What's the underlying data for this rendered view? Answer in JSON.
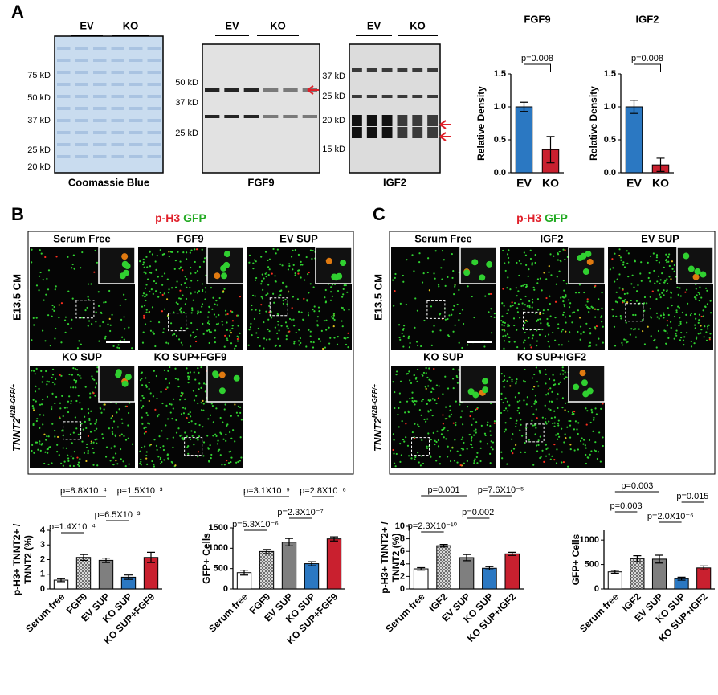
{
  "panel_labels": [
    "A",
    "B",
    "C"
  ],
  "blots": [
    {
      "caption": "Coomassie Blue",
      "groups": [
        "EV",
        "KO"
      ],
      "markers": [
        "75 kD",
        "50 kD",
        "37 kD",
        "25 kD",
        "20 kD"
      ]
    },
    {
      "caption": "FGF9",
      "groups": [
        "EV",
        "KO"
      ],
      "markers": [
        "50 kD",
        "37 kD",
        "25 kD"
      ]
    },
    {
      "caption": "IGF2",
      "groups": [
        "EV",
        "KO"
      ],
      "markers": [
        "37 kD",
        "25 kD",
        "20 kD",
        "15 kD"
      ]
    }
  ],
  "imaging": [
    {
      "stain": [
        "p-H3",
        "GFP"
      ],
      "condition": "E13.5 CM",
      "genotype": {
        "gene": "TNNT2",
        "allele": "H2B-GFP/+"
      },
      "fields": [
        "Serum Free",
        "FGF9",
        "EV SUP",
        "KO SUP",
        "KO SUP+FGF9"
      ]
    },
    {
      "stain": [
        "p-H3",
        "GFP"
      ],
      "condition": "E13.5 CM",
      "genotype": {
        "gene": "TNNT2",
        "allele": "H2B-GFP/+"
      },
      "fields": [
        "Serum Free",
        "IGF2",
        "EV SUP",
        "KO SUP",
        "KO SUP+IGF2"
      ]
    }
  ],
  "chart_data": [
    {
      "type": "bar",
      "title": "FGF9",
      "y_label": [
        "Relative Density"
      ],
      "categories": [
        "EV",
        "KO"
      ],
      "values": [
        1.0,
        0.35
      ],
      "errors": [
        0.07,
        0.2
      ],
      "colors": [
        "#2b78c2",
        "#c9202f"
      ],
      "hatched": [
        false,
        false
      ],
      "ylim": [
        0,
        1.5
      ],
      "yticks": [
        {
          "value": 0,
          "label": "0.0"
        },
        0.5,
        {
          "value": 1,
          "label": "1.0"
        },
        1.5
      ],
      "comparisons": [
        {
          "label": "p=0.008",
          "pair": [
            0,
            1
          ]
        }
      ]
    },
    {
      "type": "bar",
      "title": "IGF2",
      "y_label": [
        "Relative Density"
      ],
      "categories": [
        "EV",
        "KO"
      ],
      "values": [
        1.0,
        0.12
      ],
      "errors": [
        0.1,
        0.1
      ],
      "colors": [
        "#2b78c2",
        "#c9202f"
      ],
      "hatched": [
        false,
        false
      ],
      "ylim": [
        0,
        1.5
      ],
      "yticks": [
        {
          "value": 0,
          "label": "0.0"
        },
        0.5,
        {
          "value": 1,
          "label": "1.0"
        },
        1.5
      ],
      "comparisons": [
        {
          "label": "p=0.008",
          "pair": [
            0,
            1
          ]
        }
      ]
    },
    {
      "type": "bar",
      "y_label": [
        "p-H3+ TNNT2+ /",
        "TNNT2 (%)"
      ],
      "categories": [
        "Serum free",
        "FGF9",
        "EV SUP",
        "KO SUP",
        "KO SUP+FGF9"
      ],
      "values": [
        0.6,
        2.15,
        1.95,
        0.8,
        2.15
      ],
      "errors": [
        0.1,
        0.2,
        0.15,
        0.15,
        0.35
      ],
      "colors": [
        "#ffffff",
        "#a0a0a0",
        "#7f7f7f",
        "#2b78c2",
        "#c9202f"
      ],
      "hatched": [
        false,
        true,
        false,
        false,
        false
      ],
      "ylim": [
        0,
        4
      ],
      "yticks": [
        0,
        1,
        2,
        3,
        4
      ],
      "comparisons": [
        {
          "label": "p=1.4X10⁻⁴",
          "pair": [
            0,
            1
          ]
        },
        {
          "label": "p=8.8X10⁻⁴",
          "pair": [
            0,
            2
          ]
        },
        {
          "label": "p=6.5X10⁻³",
          "pair": [
            2,
            3
          ]
        },
        {
          "label": "p=1.5X10⁻³",
          "pair": [
            3,
            4
          ]
        }
      ]
    },
    {
      "type": "bar",
      "y_label": [
        "GFP+ Cells"
      ],
      "categories": [
        "Serum free",
        "FGF9",
        "EV SUP",
        "KO SUP",
        "KO SUP+FGF9"
      ],
      "values": [
        400,
        920,
        1150,
        620,
        1230
      ],
      "errors": [
        60,
        50,
        90,
        50,
        50
      ],
      "colors": [
        "#ffffff",
        "#a0a0a0",
        "#7f7f7f",
        "#2b78c2",
        "#c9202f"
      ],
      "hatched": [
        false,
        true,
        false,
        false,
        false
      ],
      "ylim": [
        0,
        1500
      ],
      "yticks": [
        0,
        500,
        1000,
        1500
      ],
      "comparisons": [
        {
          "label": "p=5.3X10⁻⁶",
          "pair": [
            0,
            1
          ]
        },
        {
          "label": "p=3.1X10⁻⁹",
          "pair": [
            0,
            2
          ]
        },
        {
          "label": "p=2.3X10⁻⁷",
          "pair": [
            2,
            3
          ]
        },
        {
          "label": "p=2.8X10⁻⁶",
          "pair": [
            3,
            4
          ]
        }
      ]
    },
    {
      "type": "bar",
      "y_label": [
        "p-H3+ TNNT2+ /",
        "TNNT2 (%)"
      ],
      "categories": [
        "Serum free",
        "IGF2",
        "EV SUP",
        "KO SUP",
        "KO SUP+IGF2"
      ],
      "values": [
        3.2,
        6.9,
        5.0,
        3.3,
        5.6
      ],
      "errors": [
        0.2,
        0.2,
        0.5,
        0.25,
        0.25
      ],
      "colors": [
        "#ffffff",
        "#a0a0a0",
        "#7f7f7f",
        "#2b78c2",
        "#c9202f"
      ],
      "hatched": [
        false,
        true,
        false,
        false,
        false
      ],
      "ylim": [
        0,
        10
      ],
      "yticks": [
        0,
        2,
        4,
        6,
        8,
        10
      ],
      "comparisons": [
        {
          "label": "p=2.3X10⁻¹⁰",
          "pair": [
            0,
            1
          ]
        },
        {
          "label": "p=0.001",
          "pair": [
            0,
            2
          ]
        },
        {
          "label": "p=0.002",
          "pair": [
            2,
            3
          ]
        },
        {
          "label": "p=7.6X10⁻⁵",
          "pair": [
            3,
            4
          ]
        }
      ]
    },
    {
      "type": "bar",
      "y_label": [
        "GFP+ Cells"
      ],
      "categories": [
        "Serum free",
        "IGF2",
        "EV SUP",
        "KO SUP",
        "KO SUP+IGF2"
      ],
      "values": [
        350,
        620,
        610,
        210,
        430
      ],
      "errors": [
        30,
        60,
        80,
        30,
        40
      ],
      "colors": [
        "#ffffff",
        "#a0a0a0",
        "#7f7f7f",
        "#2b78c2",
        "#c9202f"
      ],
      "hatched": [
        false,
        true,
        false,
        false,
        false
      ],
      "ylim": [
        0,
        1200
      ],
      "yticks": [
        0,
        500,
        1000
      ],
      "comparisons": [
        {
          "label": "p=0.003",
          "pair": [
            0,
            1
          ]
        },
        {
          "label": "p=0.003",
          "pair": [
            0,
            2
          ]
        },
        {
          "label": "p=2.0X10⁻⁶",
          "pair": [
            2,
            3
          ]
        },
        {
          "label": "p=0.015",
          "pair": [
            3,
            4
          ]
        }
      ]
    }
  ]
}
